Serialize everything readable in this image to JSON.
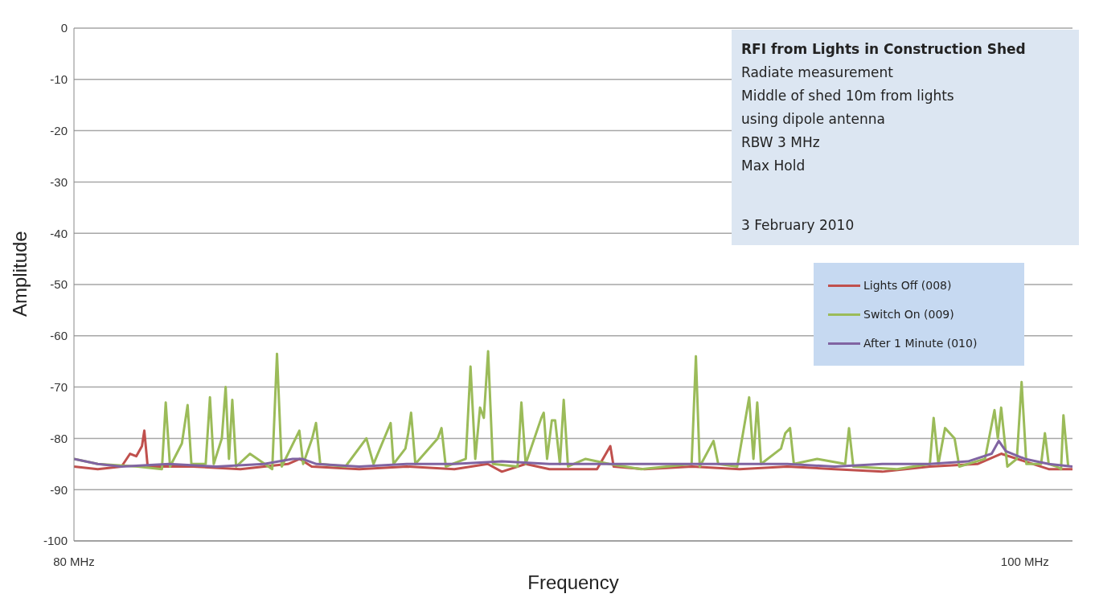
{
  "chart_data": {
    "type": "line",
    "title": "RFI from Lights in Construction Shed",
    "xlabel": "Frequency",
    "ylabel": "Amplitude",
    "annotations": [
      "Radiate measurement",
      "Middle of shed 10m from lights",
      "using dipole antenna",
      "RBW 3 MHz",
      "Max Hold",
      "3 February 2010"
    ],
    "xlim": [
      80,
      101
    ],
    "xticks": [
      {
        "value": 80,
        "label": "80 MHz"
      },
      {
        "value": 100,
        "label": "100 MHz"
      }
    ],
    "ylim": [
      -100,
      0
    ],
    "yticks": [
      0,
      -10,
      -20,
      -30,
      -40,
      -50,
      -60,
      -70,
      -80,
      -90,
      -100
    ],
    "grid": "y",
    "legend": "right",
    "marker": "none",
    "line_style": "solid",
    "series": [
      {
        "name": "Lights Off (008)",
        "color": "#c0504d",
        "x": [
          80,
          80.5,
          81,
          81.18,
          81.31,
          81.43,
          81.48,
          81.55,
          82.5,
          83.5,
          84.5,
          84.75,
          85,
          86,
          87,
          88,
          88.7,
          89,
          89.5,
          90,
          91,
          91.28,
          91.35,
          92,
          93,
          94,
          95,
          96,
          97,
          98,
          99,
          99.5,
          100,
          100.5,
          101
        ],
        "values": [
          -85.5,
          -86,
          -85.5,
          -83,
          -83.5,
          -81.5,
          -78.5,
          -85.5,
          -85.5,
          -86,
          -85,
          -84,
          -85.5,
          -86,
          -85.5,
          -86,
          -85,
          -86.5,
          -85,
          -86,
          -86,
          -81.5,
          -85.5,
          -86,
          -85.5,
          -86,
          -85.5,
          -86,
          -86.5,
          -85.5,
          -85,
          -83,
          -84.5,
          -86,
          -86
        ]
      },
      {
        "name": "Switch On (009)",
        "color": "#9bbb59",
        "x": [
          80,
          80.5,
          81.34,
          81.85,
          81.93,
          82.02,
          82.27,
          82.39,
          82.47,
          82.77,
          82.86,
          82.94,
          83.11,
          83.19,
          83.26,
          83.33,
          83.41,
          83.7,
          84.17,
          84.27,
          84.37,
          84.74,
          84.82,
          85.01,
          85.09,
          85.18,
          85.71,
          86.15,
          86.3,
          86.66,
          86.72,
          86.97,
          87.03,
          87.09,
          87.18,
          87.65,
          87.73,
          87.82,
          88.24,
          88.34,
          88.44,
          88.54,
          88.62,
          88.71,
          88.81,
          89.33,
          89.41,
          89.5,
          89.83,
          89.88,
          89.95,
          90.05,
          90.12,
          90.22,
          90.3,
          90.39,
          90.76,
          91.26,
          91.93,
          92.99,
          93.08,
          93.16,
          93.45,
          93.55,
          93.95,
          94.2,
          94.29,
          94.37,
          94.45,
          94.87,
          94.96,
          95.06,
          95.14,
          95.63,
          96.22,
          96.3,
          96.39,
          97.31,
          98,
          98.08,
          98.18,
          98.32,
          98.52,
          98.62,
          99.16,
          99.36,
          99.43,
          99.5,
          99.63,
          99.83,
          99.93,
          100.03,
          100.34,
          100.42,
          100.5,
          100.67,
          100.76,
          100.81,
          100.91
        ],
        "values": [
          -84,
          -85,
          -85.5,
          -86,
          -73,
          -85.5,
          -81,
          -73.5,
          -85,
          -85,
          -72,
          -85,
          -80,
          -70,
          -84,
          -72.5,
          -85.5,
          -83,
          -86,
          -63.5,
          -85.5,
          -78.5,
          -85,
          -80,
          -77,
          -85,
          -85.5,
          -80,
          -85,
          -77,
          -85,
          -82,
          -79,
          -75,
          -85,
          -80,
          -78,
          -85.5,
          -84,
          -66,
          -84,
          -74,
          -76,
          -63,
          -85,
          -85.5,
          -73,
          -85,
          -76,
          -75,
          -84,
          -76.5,
          -76.5,
          -85,
          -72.5,
          -85.5,
          -84,
          -85,
          -86,
          -85,
          -64,
          -85.5,
          -80.5,
          -85,
          -85.5,
          -72,
          -84,
          -73,
          -85,
          -82,
          -79,
          -78,
          -85,
          -84,
          -85,
          -78,
          -85.5,
          -86,
          -85,
          -76,
          -85,
          -78,
          -80,
          -85.5,
          -84,
          -74.5,
          -80,
          -74,
          -85.5,
          -84,
          -69,
          -85,
          -85,
          -79,
          -85,
          -85.5,
          -86,
          -75.5,
          -85.5
        ]
      },
      {
        "name": "After 1 Minute (010)",
        "color": "#8064a2",
        "x": [
          80,
          80.5,
          81,
          82,
          83,
          84,
          84.6,
          84.8,
          85.1,
          86,
          87,
          88,
          89,
          90,
          91,
          92,
          93,
          94,
          95,
          96,
          97,
          98,
          98.8,
          99.3,
          99.45,
          99.6,
          100,
          100.5,
          101
        ],
        "values": [
          -84,
          -85,
          -85.5,
          -85,
          -85.5,
          -85,
          -84,
          -84,
          -85,
          -85.5,
          -85,
          -85,
          -84.5,
          -85,
          -85,
          -85,
          -85,
          -85,
          -85,
          -85.5,
          -85,
          -85,
          -84.5,
          -83,
          -80.5,
          -82.5,
          -84,
          -85,
          -85.5
        ]
      }
    ]
  }
}
